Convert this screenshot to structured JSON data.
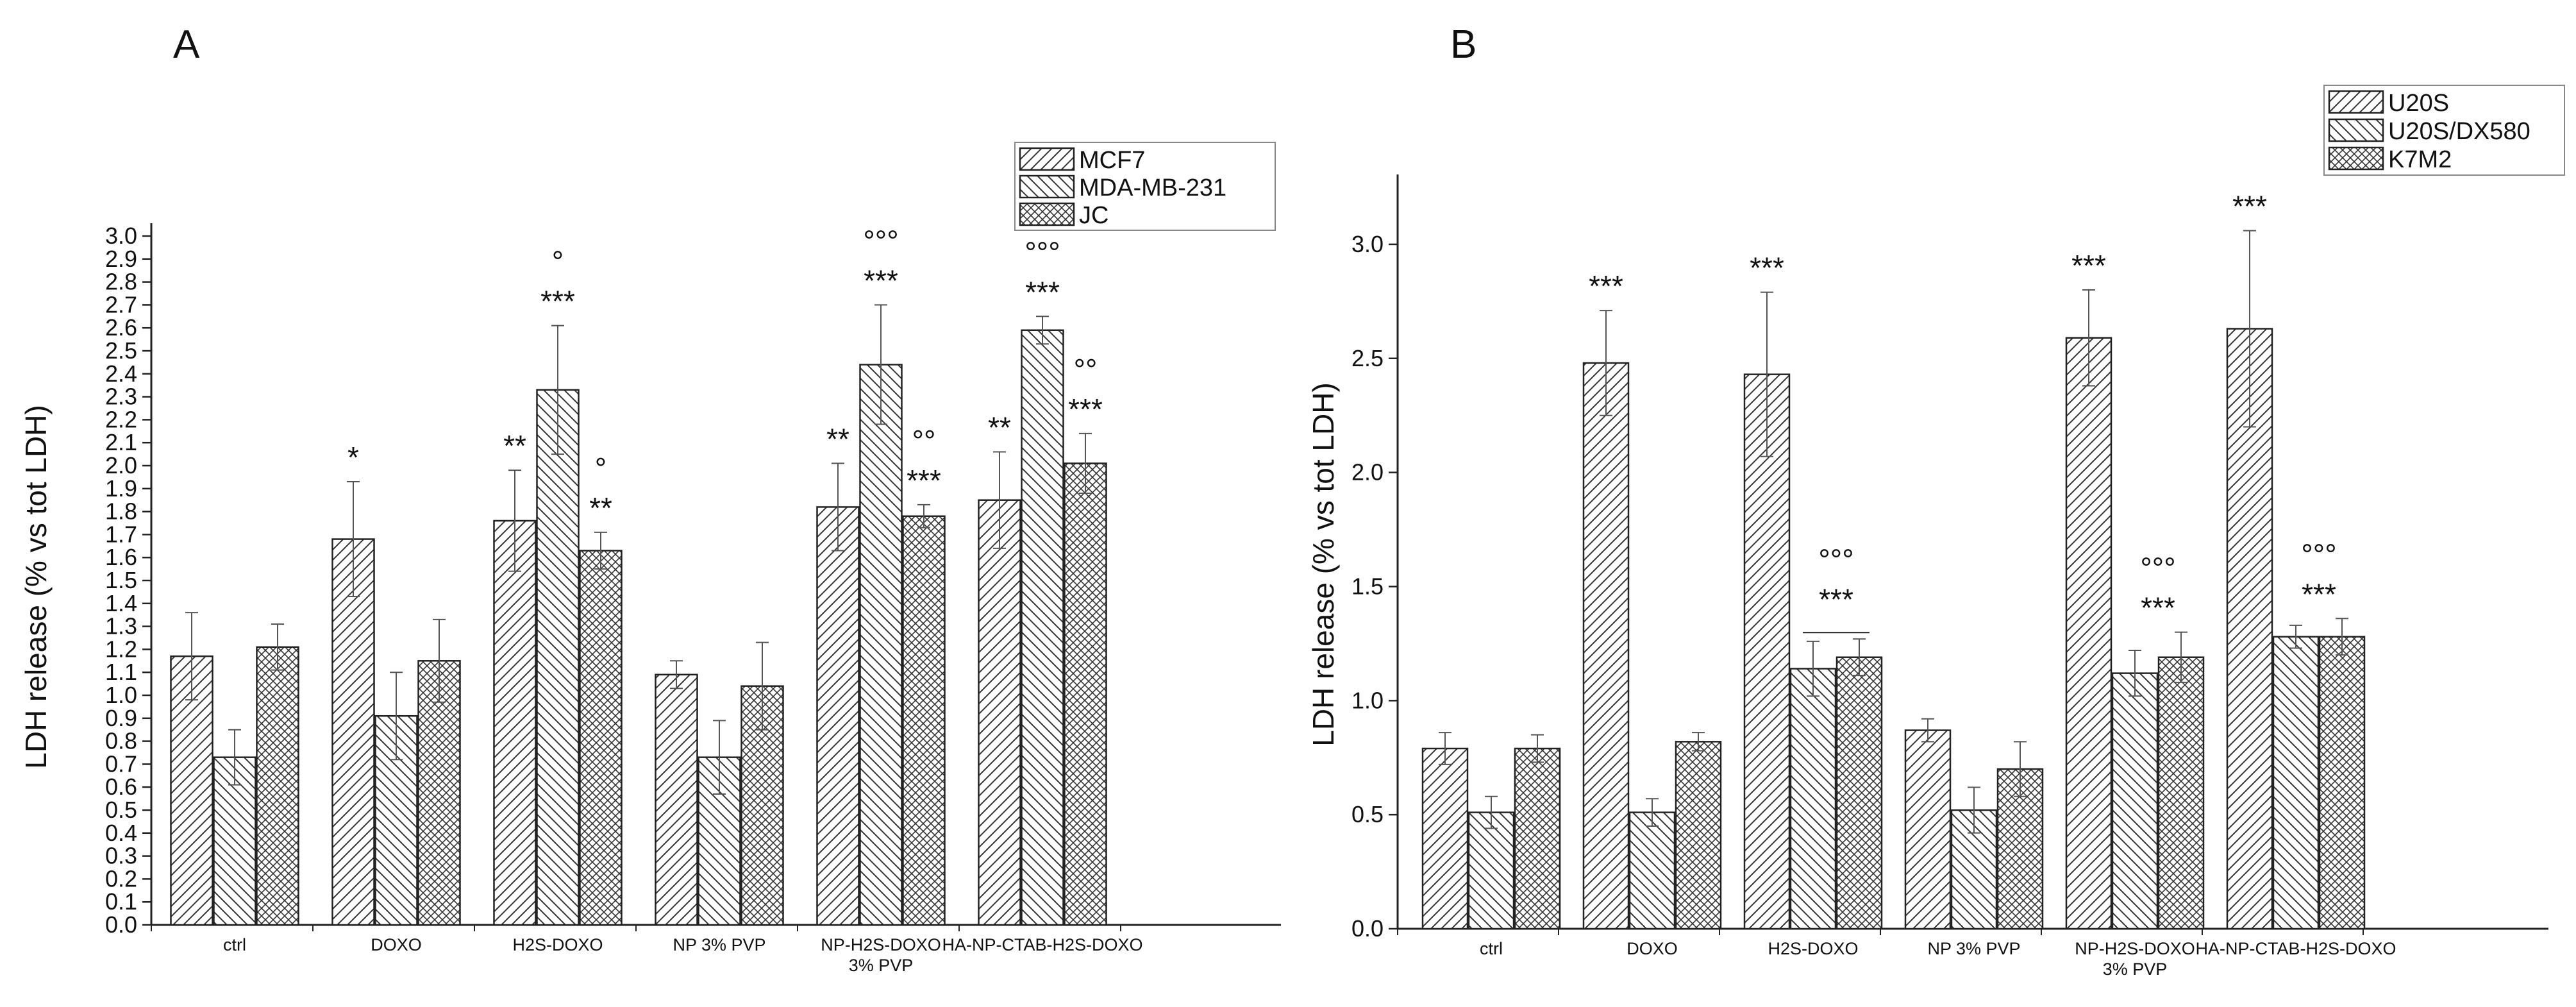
{
  "chart_data": [
    {
      "panel": "A",
      "type": "bar",
      "title": "",
      "xlabel": "",
      "ylabel": "LDH release (% vs tot LDH)",
      "ylim": [
        0,
        3.0
      ],
      "yticks": [
        "0.0",
        "0.1",
        "0.2",
        "0.3",
        "0.4",
        "0.5",
        "0.6",
        "0.7",
        "0.8",
        "0.9",
        "1.0",
        "1.1",
        "1.2",
        "1.3",
        "1.4",
        "1.5",
        "1.6",
        "1.7",
        "1.8",
        "1.9",
        "2.0",
        "2.1",
        "2.2",
        "2.3",
        "2.4",
        "2.5",
        "2.6",
        "2.7",
        "2.8",
        "2.9",
        "3.0"
      ],
      "ytick_values": [
        0,
        0.1,
        0.2,
        0.3,
        0.4,
        0.5,
        0.6,
        0.7,
        0.8,
        0.9,
        1.0,
        1.1,
        1.2,
        1.3,
        1.4,
        1.5,
        1.6,
        1.7,
        1.8,
        1.9,
        2.0,
        2.1,
        2.2,
        2.3,
        2.4,
        2.5,
        2.6,
        2.7,
        2.8,
        2.9,
        3.0
      ],
      "categories": [
        {
          "lines": [
            "ctrl"
          ]
        },
        {
          "lines": [
            "DOXO"
          ]
        },
        {
          "lines": [
            "H2S-DOXO"
          ]
        },
        {
          "lines": [
            "NP 3% PVP"
          ]
        },
        {
          "lines": [
            "NP-H2S-DOXO",
            "3% PVP"
          ]
        },
        {
          "lines": [
            "HA-NP-CTAB-H2S-DOXO"
          ]
        }
      ],
      "legend_position": "top-right",
      "series": [
        {
          "name": "MCF7",
          "pattern": "diag-right",
          "values": [
            1.17,
            1.68,
            1.76,
            1.09,
            1.82,
            1.85
          ],
          "errors": [
            0.19,
            0.25,
            0.22,
            0.06,
            0.19,
            0.21
          ]
        },
        {
          "name": "MDA-MB-231",
          "pattern": "diag-left",
          "values": [
            0.73,
            0.91,
            2.33,
            0.73,
            2.44,
            2.59
          ],
          "errors": [
            0.12,
            0.19,
            0.28,
            0.16,
            0.26,
            0.06
          ]
        },
        {
          "name": "JC",
          "pattern": "crosshatch",
          "values": [
            1.21,
            1.15,
            1.63,
            1.04,
            1.78,
            2.01
          ],
          "errors": [
            0.1,
            0.18,
            0.08,
            0.19,
            0.05,
            0.13
          ]
        }
      ],
      "annotations": [
        {
          "category": 1,
          "series": 0,
          "lines": [
            "*"
          ]
        },
        {
          "category": 2,
          "series": 0,
          "lines": [
            "**"
          ]
        },
        {
          "category": 2,
          "series": 1,
          "lines": [
            "°",
            "***"
          ]
        },
        {
          "category": 2,
          "series": 2,
          "lines": [
            "°",
            "**"
          ]
        },
        {
          "category": 4,
          "series": 0,
          "lines": [
            "**"
          ]
        },
        {
          "category": 4,
          "series": 1,
          "lines": [
            "°°°",
            "***"
          ]
        },
        {
          "category": 4,
          "series": 2,
          "lines": [
            "°°",
            "***"
          ]
        },
        {
          "category": 5,
          "series": 0,
          "lines": [
            "**"
          ]
        },
        {
          "category": 5,
          "series": 1,
          "lines": [
            "°°°",
            "***"
          ]
        },
        {
          "category": 5,
          "series": 2,
          "lines": [
            "°°",
            "***"
          ]
        }
      ],
      "group_lines": []
    },
    {
      "panel": "B",
      "type": "bar",
      "title": "",
      "xlabel": "",
      "ylabel": "LDH release (% vs tot LDH)",
      "ylim": [
        0,
        3.25
      ],
      "yticks": [
        "0.0",
        "0.5",
        "1.0",
        "1.5",
        "2.0",
        "2.5",
        "3.0"
      ],
      "ytick_values": [
        0,
        0.5,
        1.0,
        1.5,
        2.0,
        2.5,
        3.0
      ],
      "categories": [
        {
          "lines": [
            "ctrl"
          ]
        },
        {
          "lines": [
            "DOXO"
          ]
        },
        {
          "lines": [
            "H2S-DOXO"
          ]
        },
        {
          "lines": [
            "NP 3% PVP"
          ]
        },
        {
          "lines": [
            "NP-H2S-DOXO",
            "3% PVP"
          ]
        },
        {
          "lines": [
            "HA-NP-CTAB-H2S-DOXO"
          ]
        }
      ],
      "legend_position": "top-right",
      "series": [
        {
          "name": "U20S",
          "pattern": "diag-right",
          "values": [
            0.79,
            2.48,
            2.43,
            0.87,
            2.59,
            2.63
          ],
          "errors": [
            0.07,
            0.23,
            0.36,
            0.05,
            0.21,
            0.43
          ]
        },
        {
          "name": "U20S/DX580",
          "pattern": "diag-left",
          "values": [
            0.51,
            0.51,
            1.14,
            0.52,
            1.12,
            1.28
          ],
          "errors": [
            0.07,
            0.06,
            0.12,
            0.1,
            0.1,
            0.05
          ]
        },
        {
          "name": "K7M2",
          "pattern": "crosshatch",
          "values": [
            0.79,
            0.82,
            1.19,
            0.7,
            1.19,
            1.28
          ],
          "errors": [
            0.06,
            0.04,
            0.08,
            0.12,
            0.11,
            0.08
          ]
        }
      ],
      "annotations": [
        {
          "category": 1,
          "series": 0,
          "lines": [
            "***"
          ]
        },
        {
          "category": 2,
          "series": 0,
          "lines": [
            "***"
          ]
        },
        {
          "category": 2,
          "group": [
            1,
            2
          ],
          "lines": [
            "°°°",
            "***"
          ],
          "underline": true
        },
        {
          "category": 4,
          "series": 0,
          "lines": [
            "***"
          ]
        },
        {
          "category": 4,
          "group": [
            1,
            2
          ],
          "lines": [
            "°°°",
            "***"
          ]
        },
        {
          "category": 5,
          "series": 0,
          "lines": [
            "***"
          ]
        },
        {
          "category": 5,
          "group": [
            1,
            2
          ],
          "lines": [
            "°°°",
            "***"
          ]
        }
      ]
    }
  ]
}
